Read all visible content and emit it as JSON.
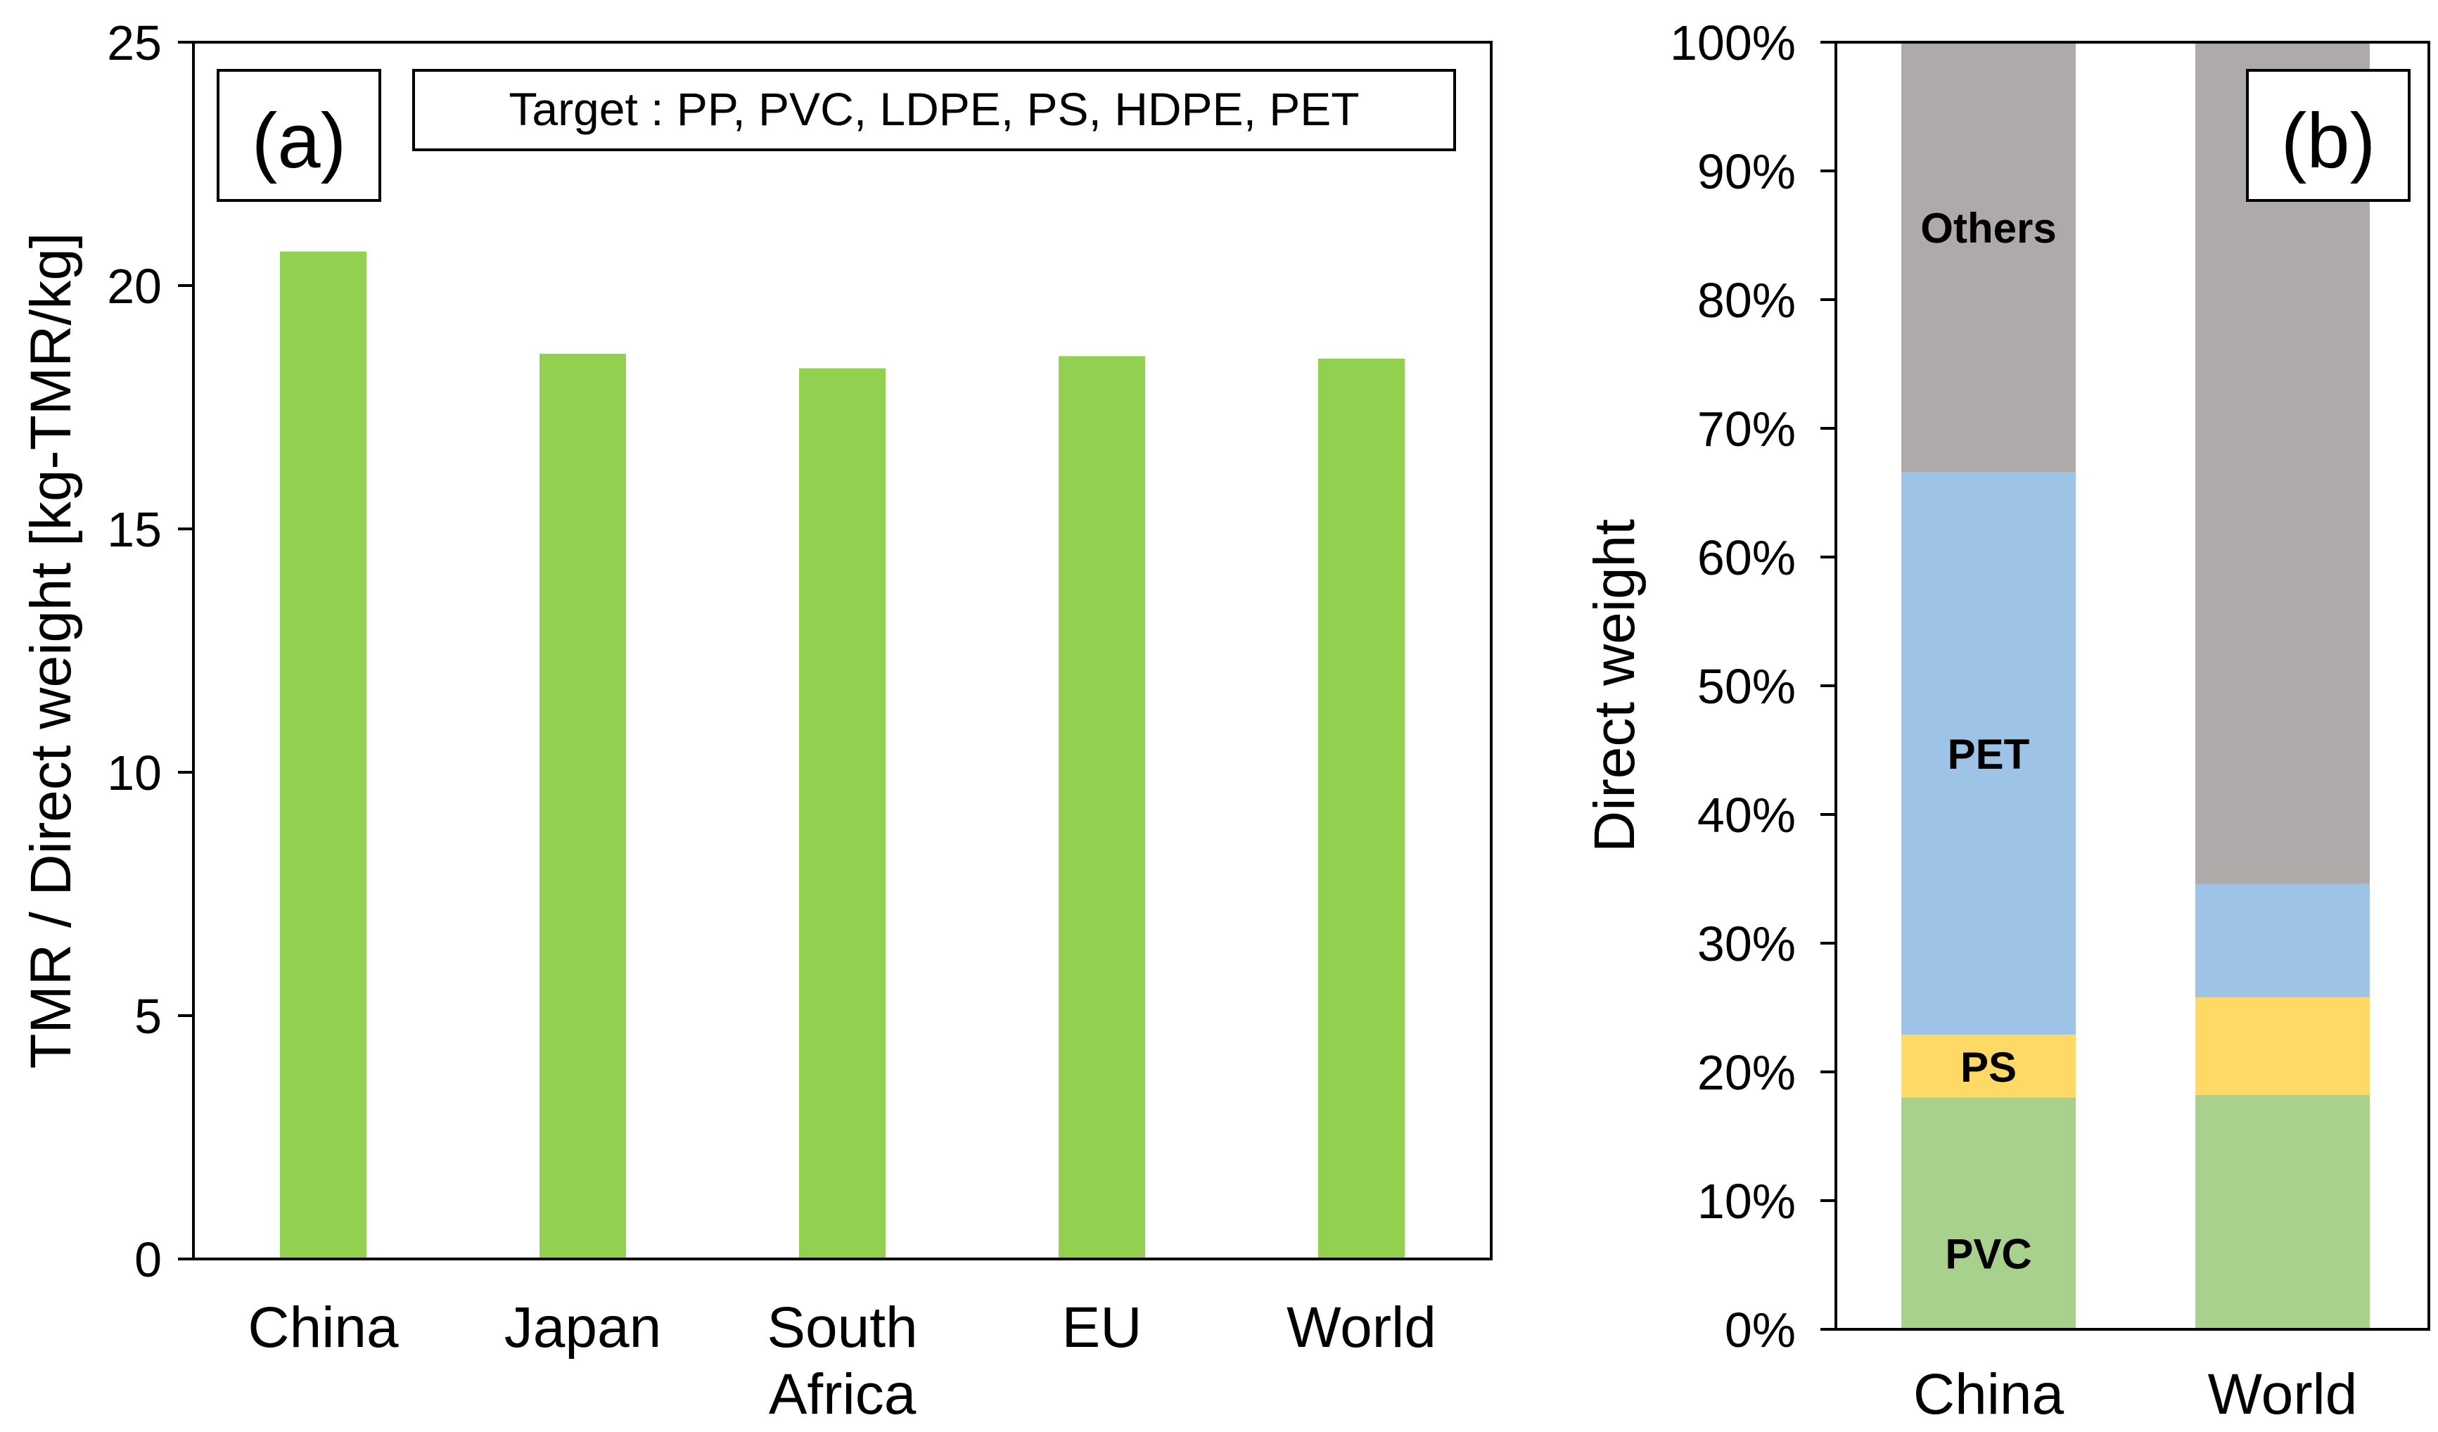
{
  "chart_data": [
    {
      "type": "bar",
      "panel_label": "(a)",
      "annotation": "Target : PP, PVC, LDPE, PS, HDPE, PET",
      "categories": [
        "China",
        "Japan",
        "South\nAfrica",
        "EU",
        "World"
      ],
      "values": [
        20.7,
        18.6,
        18.3,
        18.55,
        18.5
      ],
      "ylabel": "TMR / Direct weight [kg-TMR/kg]",
      "xlabel": "",
      "ylim": [
        0,
        25
      ],
      "yticks": [
        0,
        5,
        10,
        15,
        20,
        25
      ],
      "bar_color": "#92d050"
    },
    {
      "type": "bar",
      "stacked": true,
      "panel_label": "(b)",
      "categories": [
        "China",
        "World"
      ],
      "series": [
        {
          "name": "PVC",
          "values": [
            18,
            18.2
          ],
          "color": "#a9d18e"
        },
        {
          "name": "PS",
          "values": [
            4.9,
            7.6
          ],
          "color": "#ffd966"
        },
        {
          "name": "PET",
          "values": [
            43.7,
            8.8
          ],
          "color": "#9dc3e6"
        },
        {
          "name": "Others",
          "values": [
            33.4,
            65.4
          ],
          "color": "#aeaaaa"
        }
      ],
      "ylabel": "Direct weight",
      "xlabel": "",
      "ylim": [
        0,
        100
      ],
      "yticks": [
        "0%",
        "10%",
        "20%",
        "30%",
        "40%",
        "50%",
        "60%",
        "70%",
        "80%",
        "90%",
        "100%"
      ]
    }
  ]
}
